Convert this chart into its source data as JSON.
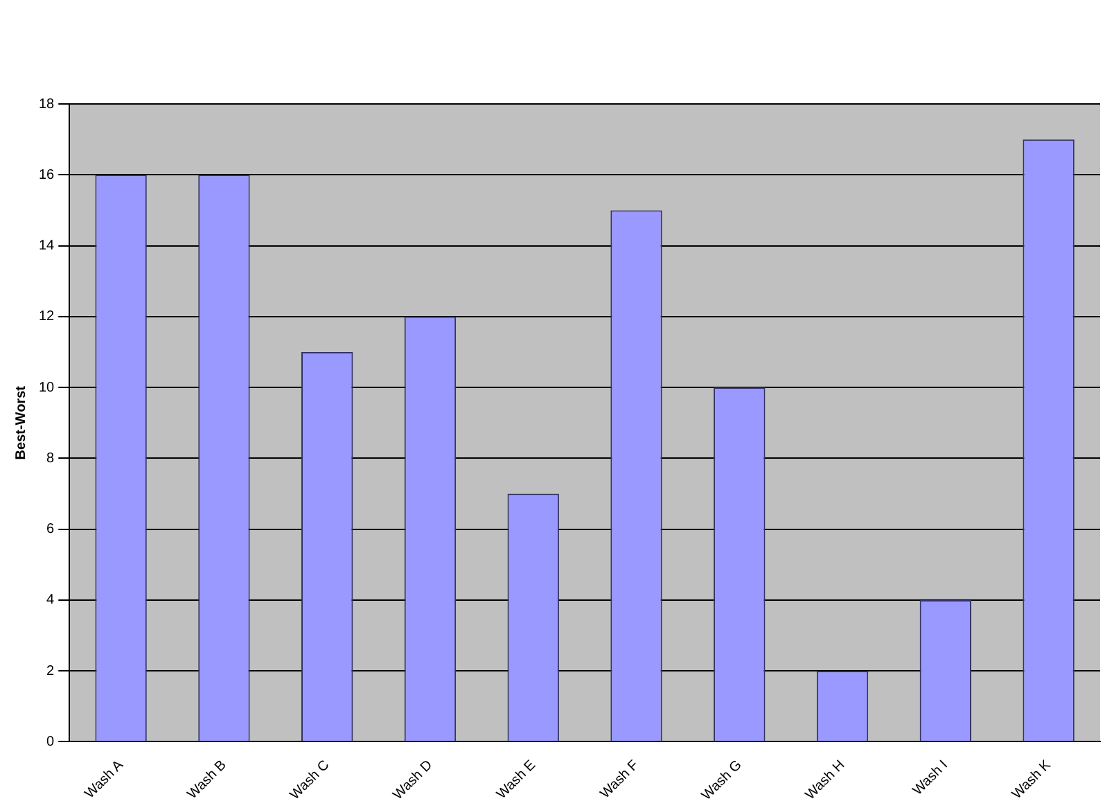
{
  "chart_data": {
    "type": "bar",
    "ylabel": "Best-Worst",
    "categories": [
      "Wash A",
      "Wash B",
      "Wash C",
      "Wash D",
      "Wash E",
      "Wash F",
      "Wash G",
      "Wash H",
      "Wash I",
      "Wash K"
    ],
    "values": [
      16,
      16,
      11,
      12,
      7,
      15,
      10,
      2,
      4,
      17
    ],
    "color": "#9999ff",
    "ylim": [
      0,
      18
    ],
    "yticks": [
      0,
      2,
      4,
      6,
      8,
      10,
      12,
      14,
      16,
      18
    ],
    "grid": "y",
    "legend": false
  }
}
